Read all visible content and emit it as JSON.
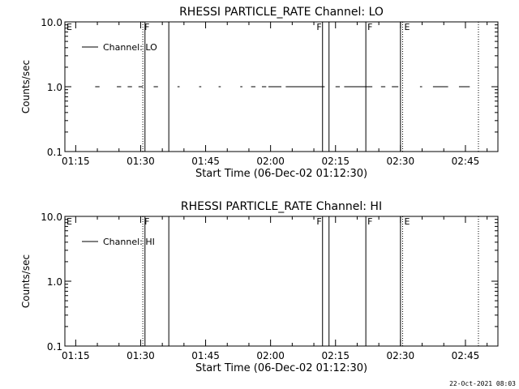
{
  "footer": {
    "timestamp": "22-Oct-2021 08:03"
  },
  "chart_data": [
    {
      "type": "line",
      "title": "RHESSI PARTICLE_RATE Channel: LO",
      "xlabel": "Start Time (06-Dec-02 01:12:30)",
      "ylabel": "Counts/sec",
      "xlim": [
        "01:12:30",
        "02:52:30"
      ],
      "ylim": [
        0.1,
        10.0
      ],
      "yscale": "log",
      "x_tick_labels": [
        "01:15",
        "01:30",
        "01:45",
        "02:00",
        "02:15",
        "02:30",
        "02:45"
      ],
      "y_tick_labels": [
        "0.1",
        "1.0",
        "10.0"
      ],
      "legend": {
        "entries": [
          "Channel: LO"
        ],
        "placement": "top-left"
      },
      "series": [
        {
          "name": "Channel: LO",
          "segments": [
            [
              [
                "01:19:30",
                1.0
              ],
              [
                "01:20:30",
                1.0
              ]
            ],
            [
              [
                "01:24:30",
                1.0
              ],
              [
                "01:25:30",
                1.0
              ]
            ],
            [
              [
                "01:27:00",
                1.0
              ],
              [
                "01:28:00",
                1.0
              ]
            ],
            [
              [
                "01:29:30",
                1.0
              ],
              [
                "01:30:30",
                1.0
              ]
            ],
            [
              [
                "01:33:00",
                1.0
              ],
              [
                "01:34:00",
                1.0
              ]
            ],
            [
              [
                "01:38:30",
                1.0
              ],
              [
                "01:39:00",
                1.0
              ]
            ],
            [
              [
                "01:43:30",
                1.0
              ],
              [
                "01:44:00",
                1.0
              ]
            ],
            [
              [
                "01:48:00",
                1.0
              ],
              [
                "01:48:30",
                1.0
              ]
            ],
            [
              [
                "01:53:00",
                1.0
              ],
              [
                "01:53:30",
                1.0
              ]
            ],
            [
              [
                "01:55:30",
                1.0
              ],
              [
                "01:56:30",
                1.0
              ]
            ],
            [
              [
                "01:58:00",
                1.0
              ],
              [
                "01:59:00",
                1.0
              ]
            ],
            [
              [
                "01:59:30",
                1.0
              ],
              [
                "02:02:30",
                1.0
              ]
            ],
            [
              [
                "02:03:30",
                1.0
              ],
              [
                "02:12:30",
                1.0
              ]
            ],
            [
              [
                "02:15:00",
                1.0
              ],
              [
                "02:16:00",
                1.0
              ]
            ],
            [
              [
                "02:17:00",
                1.0
              ],
              [
                "02:23:30",
                1.0
              ]
            ],
            [
              [
                "02:25:30",
                1.0
              ],
              [
                "02:26:30",
                1.0
              ]
            ],
            [
              [
                "02:28:00",
                1.0
              ],
              [
                "02:29:30",
                1.0
              ]
            ],
            [
              [
                "02:34:30",
                1.0
              ],
              [
                "02:35:00",
                1.0
              ]
            ],
            [
              [
                "02:37:30",
                1.0
              ],
              [
                "02:41:00",
                1.0
              ]
            ],
            [
              [
                "02:43:30",
                1.0
              ],
              [
                "02:46:00",
                1.0
              ]
            ]
          ]
        }
      ],
      "markers": [
        {
          "label": "E",
          "time": "01:12:30",
          "style": "dotted",
          "label_side": "right"
        },
        {
          "label": "F",
          "time": "01:30:30",
          "style": "dotted",
          "label_side": "right"
        },
        {
          "label": "",
          "time": "01:31:00",
          "style": "solid",
          "label_side": "right"
        },
        {
          "label": "",
          "time": "01:36:30",
          "style": "solid",
          "label_side": "right"
        },
        {
          "label": "F",
          "time": "02:12:00",
          "style": "solid",
          "label_side": "left"
        },
        {
          "label": "",
          "time": "02:13:30",
          "style": "solid",
          "label_side": "right"
        },
        {
          "label": "F",
          "time": "02:22:00",
          "style": "solid",
          "label_side": "right"
        },
        {
          "label": "",
          "time": "02:30:00",
          "style": "solid",
          "label_side": "right"
        },
        {
          "label": "E",
          "time": "02:30:30",
          "style": "dotted",
          "label_side": "right"
        },
        {
          "label": "",
          "time": "02:48:00",
          "style": "dotted",
          "label_side": "right"
        }
      ]
    },
    {
      "type": "line",
      "title": "RHESSI PARTICLE_RATE Channel: HI",
      "xlabel": "Start Time (06-Dec-02 01:12:30)",
      "ylabel": "Counts/sec",
      "xlim": [
        "01:12:30",
        "02:52:30"
      ],
      "ylim": [
        0.1,
        10.0
      ],
      "yscale": "log",
      "x_tick_labels": [
        "01:15",
        "01:30",
        "01:45",
        "02:00",
        "02:15",
        "02:30",
        "02:45"
      ],
      "y_tick_labels": [
        "0.1",
        "1.0",
        "10.0"
      ],
      "legend": {
        "entries": [
          "Channel: HI"
        ],
        "placement": "top-left"
      },
      "series": [
        {
          "name": "Channel: HI",
          "segments": []
        }
      ],
      "markers": [
        {
          "label": "E",
          "time": "01:12:30",
          "style": "dotted",
          "label_side": "right"
        },
        {
          "label": "F",
          "time": "01:30:30",
          "style": "dotted",
          "label_side": "right"
        },
        {
          "label": "",
          "time": "01:31:00",
          "style": "solid",
          "label_side": "right"
        },
        {
          "label": "",
          "time": "01:36:30",
          "style": "solid",
          "label_side": "right"
        },
        {
          "label": "F",
          "time": "02:12:00",
          "style": "solid",
          "label_side": "left"
        },
        {
          "label": "",
          "time": "02:13:30",
          "style": "solid",
          "label_side": "right"
        },
        {
          "label": "F",
          "time": "02:22:00",
          "style": "solid",
          "label_side": "right"
        },
        {
          "label": "",
          "time": "02:30:00",
          "style": "solid",
          "label_side": "right"
        },
        {
          "label": "E",
          "time": "02:30:30",
          "style": "dotted",
          "label_side": "right"
        },
        {
          "label": "",
          "time": "02:48:00",
          "style": "dotted",
          "label_side": "right"
        }
      ]
    }
  ]
}
